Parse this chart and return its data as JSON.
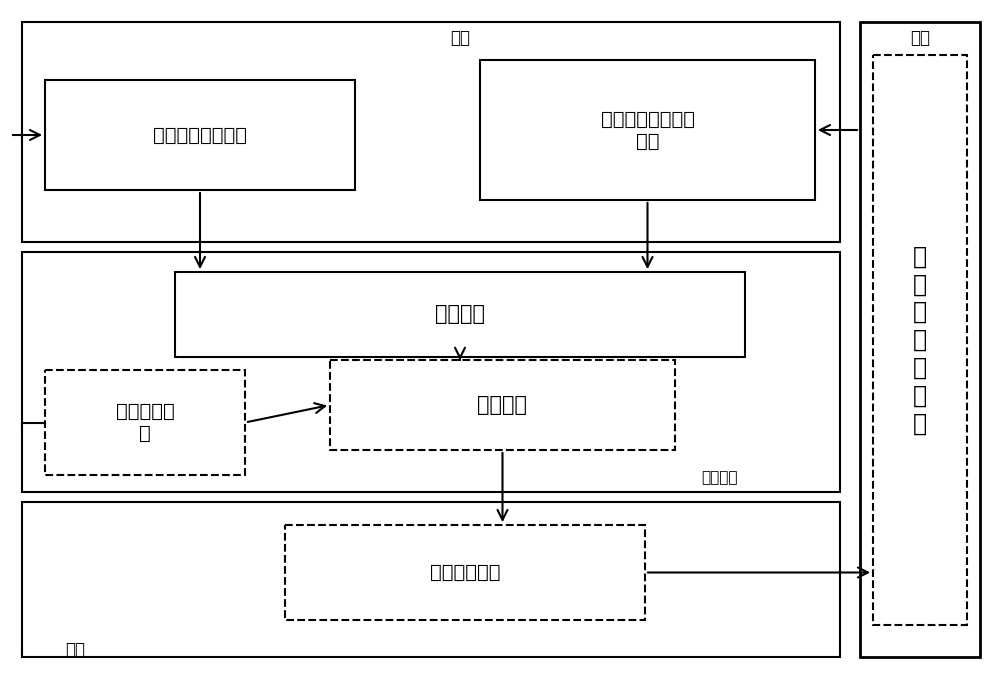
{
  "bg_color": "#ffffff",
  "label_input": "输入",
  "label_process": "处置",
  "label_realtime": "实时检测",
  "label_output": "输出",
  "label_blackhole": "黑\n洞\n权\n威\n服\n务\n器",
  "box_normal_log": "正常域名查询日志",
  "box_botnet_log": "僵尸网路域名查询\n日志",
  "box_feature": "特征提取",
  "box_online_log": "线上日志数\n据",
  "box_ml": "机器学习",
  "box_botnet_domain": "僵尸网络域名",
  "figsize": [
    10.0,
    6.79
  ],
  "dpi": 100
}
